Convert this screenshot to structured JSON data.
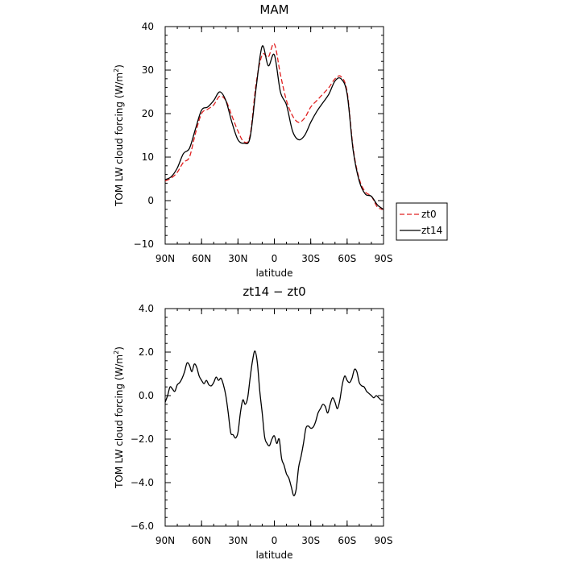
{
  "chart_data": [
    {
      "type": "line",
      "title": "MAM",
      "xlabel": "latitude",
      "ylabel": "TOM LW cloud forcing (W/m²)",
      "ylabel_parts": {
        "main": "TOM LW cloud forcing (W/m",
        "sup": "2",
        "end": ")"
      },
      "xticks": [
        {
          "value": 90,
          "label": "90N"
        },
        {
          "value": 60,
          "label": "60N"
        },
        {
          "value": 30,
          "label": "30N"
        },
        {
          "value": 0,
          "label": "0"
        },
        {
          "value": -30,
          "label": "30S"
        },
        {
          "value": -60,
          "label": "60S"
        },
        {
          "value": -90,
          "label": "90S"
        }
      ],
      "yticks": [
        {
          "value": 40,
          "label": "40"
        },
        {
          "value": 30,
          "label": "30"
        },
        {
          "value": 20,
          "label": "20"
        },
        {
          "value": 10,
          "label": "10"
        },
        {
          "value": 0,
          "label": "0"
        },
        {
          "value": -10,
          "label": "−10"
        }
      ],
      "xlim": [
        90,
        -90
      ],
      "ylim": [
        -10,
        40
      ],
      "legend": "right",
      "series": [
        {
          "name": "zt0",
          "color": "#e02020",
          "dash": "dashed",
          "x": [
            90,
            85,
            80,
            75,
            70,
            65,
            60,
            55,
            50,
            45,
            40,
            35,
            30,
            25,
            20,
            15,
            10,
            5,
            0,
            -5,
            -10,
            -15,
            -20,
            -25,
            -30,
            -35,
            -40,
            -45,
            -50,
            -55,
            -60,
            -65,
            -70,
            -75,
            -80,
            -85,
            -90
          ],
          "y": [
            4.5,
            5.2,
            6.5,
            8.8,
            10.0,
            15.5,
            20.0,
            21.0,
            22.0,
            24.0,
            23.0,
            19.5,
            16.0,
            13.5,
            15.0,
            27.0,
            33.5,
            33.0,
            36.0,
            29.0,
            23.0,
            19.5,
            18.0,
            19.0,
            21.5,
            23.0,
            24.5,
            26.0,
            28.0,
            28.5,
            25.0,
            12.0,
            5.0,
            2.0,
            1.0,
            -1.5,
            -2.0
          ]
        },
        {
          "name": "zt14",
          "color": "#000000",
          "dash": "solid",
          "x": [
            90,
            85,
            80,
            75,
            70,
            65,
            60,
            55,
            50,
            45,
            40,
            35,
            30,
            25,
            20,
            15,
            10,
            5,
            0,
            -5,
            -10,
            -15,
            -20,
            -25,
            -30,
            -35,
            -40,
            -45,
            -50,
            -55,
            -60,
            -65,
            -70,
            -75,
            -80,
            -85,
            -90
          ],
          "y": [
            4.8,
            5.5,
            7.5,
            10.8,
            12.0,
            16.5,
            20.8,
            21.5,
            23.0,
            25.0,
            23.0,
            18.0,
            14.0,
            13.2,
            14.5,
            26.0,
            35.5,
            31.0,
            33.5,
            25.0,
            22.0,
            16.0,
            14.0,
            15.0,
            18.0,
            20.5,
            22.5,
            24.5,
            27.5,
            28.0,
            24.5,
            11.5,
            4.5,
            1.5,
            1.0,
            -1.0,
            -2.0
          ]
        }
      ]
    },
    {
      "type": "line",
      "title": "zt14 − zt0",
      "xlabel": "latitude",
      "ylabel": "TOM LW cloud forcing (W/m²)",
      "ylabel_parts": {
        "main": "TOM LW cloud forcing (W/m",
        "sup": "2",
        "end": ")"
      },
      "xticks": [
        {
          "value": 90,
          "label": "90N"
        },
        {
          "value": 60,
          "label": "60N"
        },
        {
          "value": 30,
          "label": "30N"
        },
        {
          "value": 0,
          "label": "0"
        },
        {
          "value": -30,
          "label": "30S"
        },
        {
          "value": -60,
          "label": "60S"
        },
        {
          "value": -90,
          "label": "90S"
        }
      ],
      "yticks": [
        {
          "value": 4.0,
          "label": "4.0"
        },
        {
          "value": 2.0,
          "label": "2.0"
        },
        {
          "value": 0.0,
          "label": "0.0"
        },
        {
          "value": -2.0,
          "label": "−2.0"
        },
        {
          "value": -4.0,
          "label": "−4.0"
        },
        {
          "value": -6.0,
          "label": "−6.0"
        }
      ],
      "xlim": [
        90,
        -90
      ],
      "ylim": [
        -6.0,
        4.0
      ],
      "series": [
        {
          "color": "#000000",
          "dash": "solid",
          "x": [
            90,
            88,
            86,
            84,
            82,
            80,
            78,
            76,
            74,
            72,
            70,
            68,
            66,
            64,
            62,
            60,
            58,
            56,
            54,
            52,
            50,
            48,
            46,
            44,
            42,
            40,
            38,
            36,
            34,
            32,
            30,
            28,
            26,
            24,
            22,
            20,
            18,
            16,
            14,
            12,
            10,
            8,
            6,
            4,
            2,
            0,
            -2,
            -4,
            -6,
            -8,
            -10,
            -12,
            -14,
            -16,
            -18,
            -20,
            -22,
            -24,
            -26,
            -28,
            -30,
            -32,
            -34,
            -36,
            -38,
            -40,
            -42,
            -44,
            -46,
            -48,
            -50,
            -52,
            -54,
            -56,
            -58,
            -60,
            -62,
            -64,
            -66,
            -68,
            -70,
            -72,
            -74,
            -76,
            -78,
            -80,
            -82,
            -84,
            -86,
            -88,
            -90
          ],
          "y": [
            -0.3,
            0.0,
            0.4,
            0.3,
            0.2,
            0.5,
            0.6,
            0.8,
            1.1,
            1.5,
            1.4,
            1.1,
            1.45,
            1.3,
            0.9,
            0.7,
            0.55,
            0.7,
            0.5,
            0.45,
            0.6,
            0.85,
            0.7,
            0.8,
            0.5,
            0.0,
            -0.8,
            -1.7,
            -1.8,
            -1.95,
            -1.7,
            -0.8,
            -0.2,
            -0.4,
            -0.1,
            0.8,
            1.6,
            2.05,
            1.5,
            0.2,
            -0.8,
            -1.9,
            -2.2,
            -2.3,
            -2.0,
            -1.85,
            -2.2,
            -2.0,
            -2.9,
            -3.2,
            -3.6,
            -3.8,
            -4.2,
            -4.6,
            -4.3,
            -3.3,
            -2.8,
            -2.2,
            -1.5,
            -1.4,
            -1.5,
            -1.45,
            -1.2,
            -0.8,
            -0.6,
            -0.4,
            -0.5,
            -0.8,
            -0.4,
            -0.1,
            -0.3,
            -0.6,
            -0.2,
            0.5,
            0.9,
            0.7,
            0.6,
            0.8,
            1.2,
            1.1,
            0.6,
            0.45,
            0.4,
            0.2,
            0.1,
            0.0,
            -0.1,
            0.0,
            -0.1,
            -0.2,
            -0.2
          ]
        }
      ]
    }
  ]
}
